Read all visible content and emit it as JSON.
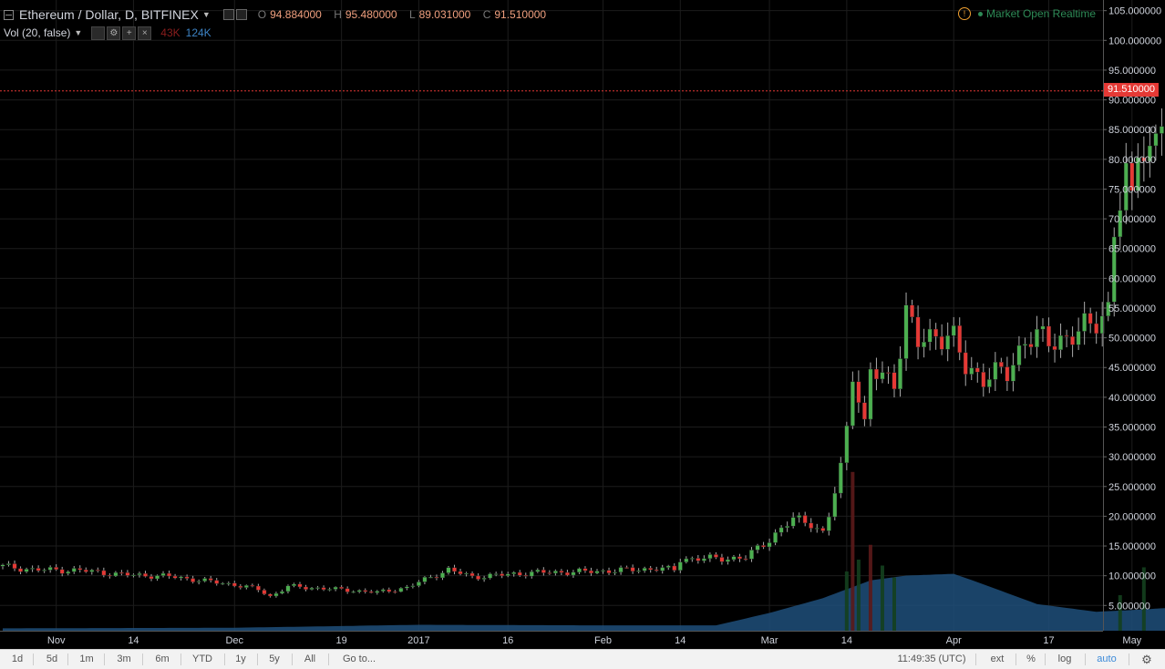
{
  "legend": {
    "symbol": "Ethereum / Dollar, D, BITFINEX",
    "ohlc": [
      {
        "k": "O",
        "v": "94.884000"
      },
      {
        "k": "H",
        "v": "95.480000"
      },
      {
        "k": "L",
        "v": "89.031000"
      },
      {
        "k": "C",
        "v": "91.510000"
      }
    ]
  },
  "volume": {
    "label": "Vol (20, false)",
    "v1": "43K",
    "v2": "124K"
  },
  "status": {
    "text": "Market Open Realtime"
  },
  "last_price": "91.510000",
  "toolbar": {
    "ranges": [
      "1d",
      "5d",
      "1m",
      "3m",
      "6m",
      "YTD",
      "1y",
      "5y",
      "All"
    ],
    "goto": "Go to...",
    "time": "11:49:35 (UTC)",
    "ext": "ext",
    "pct": "%",
    "log": "log",
    "auto": "auto"
  },
  "colors": {
    "up": "#4caf50",
    "down": "#e53935",
    "volume_area": "#1f4f7a",
    "price_line": "#e53935"
  },
  "chart_data": {
    "type": "candlestick",
    "title": "Ethereum / Dollar, D, BITFINEX",
    "ylim": [
      0,
      105
    ],
    "y_ticks": [
      "5.000000",
      "10.000000",
      "15.000000",
      "20.000000",
      "25.000000",
      "30.000000",
      "35.000000",
      "40.000000",
      "45.000000",
      "50.000000",
      "55.000000",
      "60.000000",
      "65.000000",
      "70.000000",
      "75.000000",
      "80.000000",
      "85.000000",
      "90.000000",
      "95.000000",
      "100.000000",
      "105.000000"
    ],
    "x_ticks": [
      {
        "label": "Nov",
        "date": "2016-11-01"
      },
      {
        "label": "14",
        "date": "2016-11-14"
      },
      {
        "label": "Dec",
        "date": "2016-12-01"
      },
      {
        "label": "19",
        "date": "2016-12-19"
      },
      {
        "label": "2017",
        "date": "2017-01-01"
      },
      {
        "label": "16",
        "date": "2017-01-16"
      },
      {
        "label": "Feb",
        "date": "2017-02-01"
      },
      {
        "label": "14",
        "date": "2017-02-14"
      },
      {
        "label": "Mar",
        "date": "2017-03-01"
      },
      {
        "label": "14",
        "date": "2017-03-14"
      },
      {
        "label": "Apr",
        "date": "2017-04-01"
      },
      {
        "label": "17",
        "date": "2017-04-17"
      },
      {
        "label": "May",
        "date": "2017-05-01"
      }
    ],
    "grid": true,
    "last_close": 91.51,
    "series_anchors": {
      "start_date": "2016-10-23",
      "close": [
        [
          "2016-10-23",
          11.6
        ],
        [
          "2016-10-28",
          11.0
        ],
        [
          "2016-11-05",
          10.9
        ],
        [
          "2016-11-12",
          10.2
        ],
        [
          "2016-11-20",
          9.9
        ],
        [
          "2016-11-27",
          9.0
        ],
        [
          "2016-12-01",
          8.5
        ],
        [
          "2016-12-05",
          7.7
        ],
        [
          "2016-12-07",
          6.5
        ],
        [
          "2016-12-10",
          8.2
        ],
        [
          "2016-12-17",
          7.8
        ],
        [
          "2016-12-25",
          7.2
        ],
        [
          "2016-12-30",
          8.0
        ],
        [
          "2017-01-03",
          9.8
        ],
        [
          "2017-01-06",
          11.0
        ],
        [
          "2017-01-10",
          9.8
        ],
        [
          "2017-01-20",
          10.5
        ],
        [
          "2017-01-30",
          10.7
        ],
        [
          "2017-02-10",
          11.2
        ],
        [
          "2017-02-13",
          11.0
        ],
        [
          "2017-02-14",
          12.8
        ],
        [
          "2017-02-25",
          13.0
        ],
        [
          "2017-03-02",
          17.0
        ],
        [
          "2017-03-05",
          19.5
        ],
        [
          "2017-03-08",
          19.0
        ],
        [
          "2017-03-10",
          17.0
        ],
        [
          "2017-03-11",
          20.0
        ],
        [
          "2017-03-13",
          28.0
        ],
        [
          "2017-03-14",
          35.0
        ],
        [
          "2017-03-15",
          45.0
        ],
        [
          "2017-03-17",
          35.0
        ],
        [
          "2017-03-18",
          44.0
        ],
        [
          "2017-03-22",
          43.0
        ],
        [
          "2017-03-24",
          54.0
        ],
        [
          "2017-03-26",
          49.0
        ],
        [
          "2017-03-29",
          51.0
        ],
        [
          "2017-04-01",
          49.5
        ],
        [
          "2017-04-03",
          45.0
        ],
        [
          "2017-04-06",
          43.5
        ],
        [
          "2017-04-10",
          44.0
        ],
        [
          "2017-04-13",
          50.0
        ],
        [
          "2017-04-17",
          49.5
        ],
        [
          "2017-04-22",
          50.5
        ],
        [
          "2017-04-27",
          55.0
        ],
        [
          "2017-04-28",
          68.0
        ],
        [
          "2017-04-30",
          76.0
        ],
        [
          "2017-05-01",
          73.0
        ],
        [
          "2017-05-02",
          84.0
        ],
        [
          "2017-05-04",
          80.5
        ],
        [
          "2017-05-06",
          87.0
        ],
        [
          "2017-05-07",
          97.0
        ],
        [
          "2017-05-08",
          91.0
        ],
        [
          "2017-05-09",
          96.0
        ],
        [
          "2017-05-10",
          91.5
        ]
      ]
    },
    "volume_area": [
      [
        "2016-10-23",
        0.4
      ],
      [
        "2016-12-01",
        0.5
      ],
      [
        "2017-01-01",
        1.0
      ],
      [
        "2017-02-01",
        0.9
      ],
      [
        "2017-02-20",
        0.9
      ],
      [
        "2017-03-01",
        3.0
      ],
      [
        "2017-03-10",
        5.5
      ],
      [
        "2017-03-18",
        8.5
      ],
      [
        "2017-03-24",
        9.3
      ],
      [
        "2017-04-01",
        9.6
      ],
      [
        "2017-04-05",
        8.2
      ],
      [
        "2017-04-15",
        4.5
      ],
      [
        "2017-04-25",
        3.2
      ],
      [
        "2017-05-01",
        3.5
      ],
      [
        "2017-05-10",
        4.0
      ]
    ],
    "volume_spikes": [
      [
        "2017-03-14",
        10.0
      ],
      [
        "2017-03-15",
        26.8
      ],
      [
        "2017-03-16",
        12.0
      ],
      [
        "2017-03-18",
        14.5
      ],
      [
        "2017-03-20",
        11.0
      ],
      [
        "2017-03-22",
        9.0
      ],
      [
        "2017-04-29",
        6.0
      ],
      [
        "2017-05-03",
        10.7
      ]
    ]
  }
}
